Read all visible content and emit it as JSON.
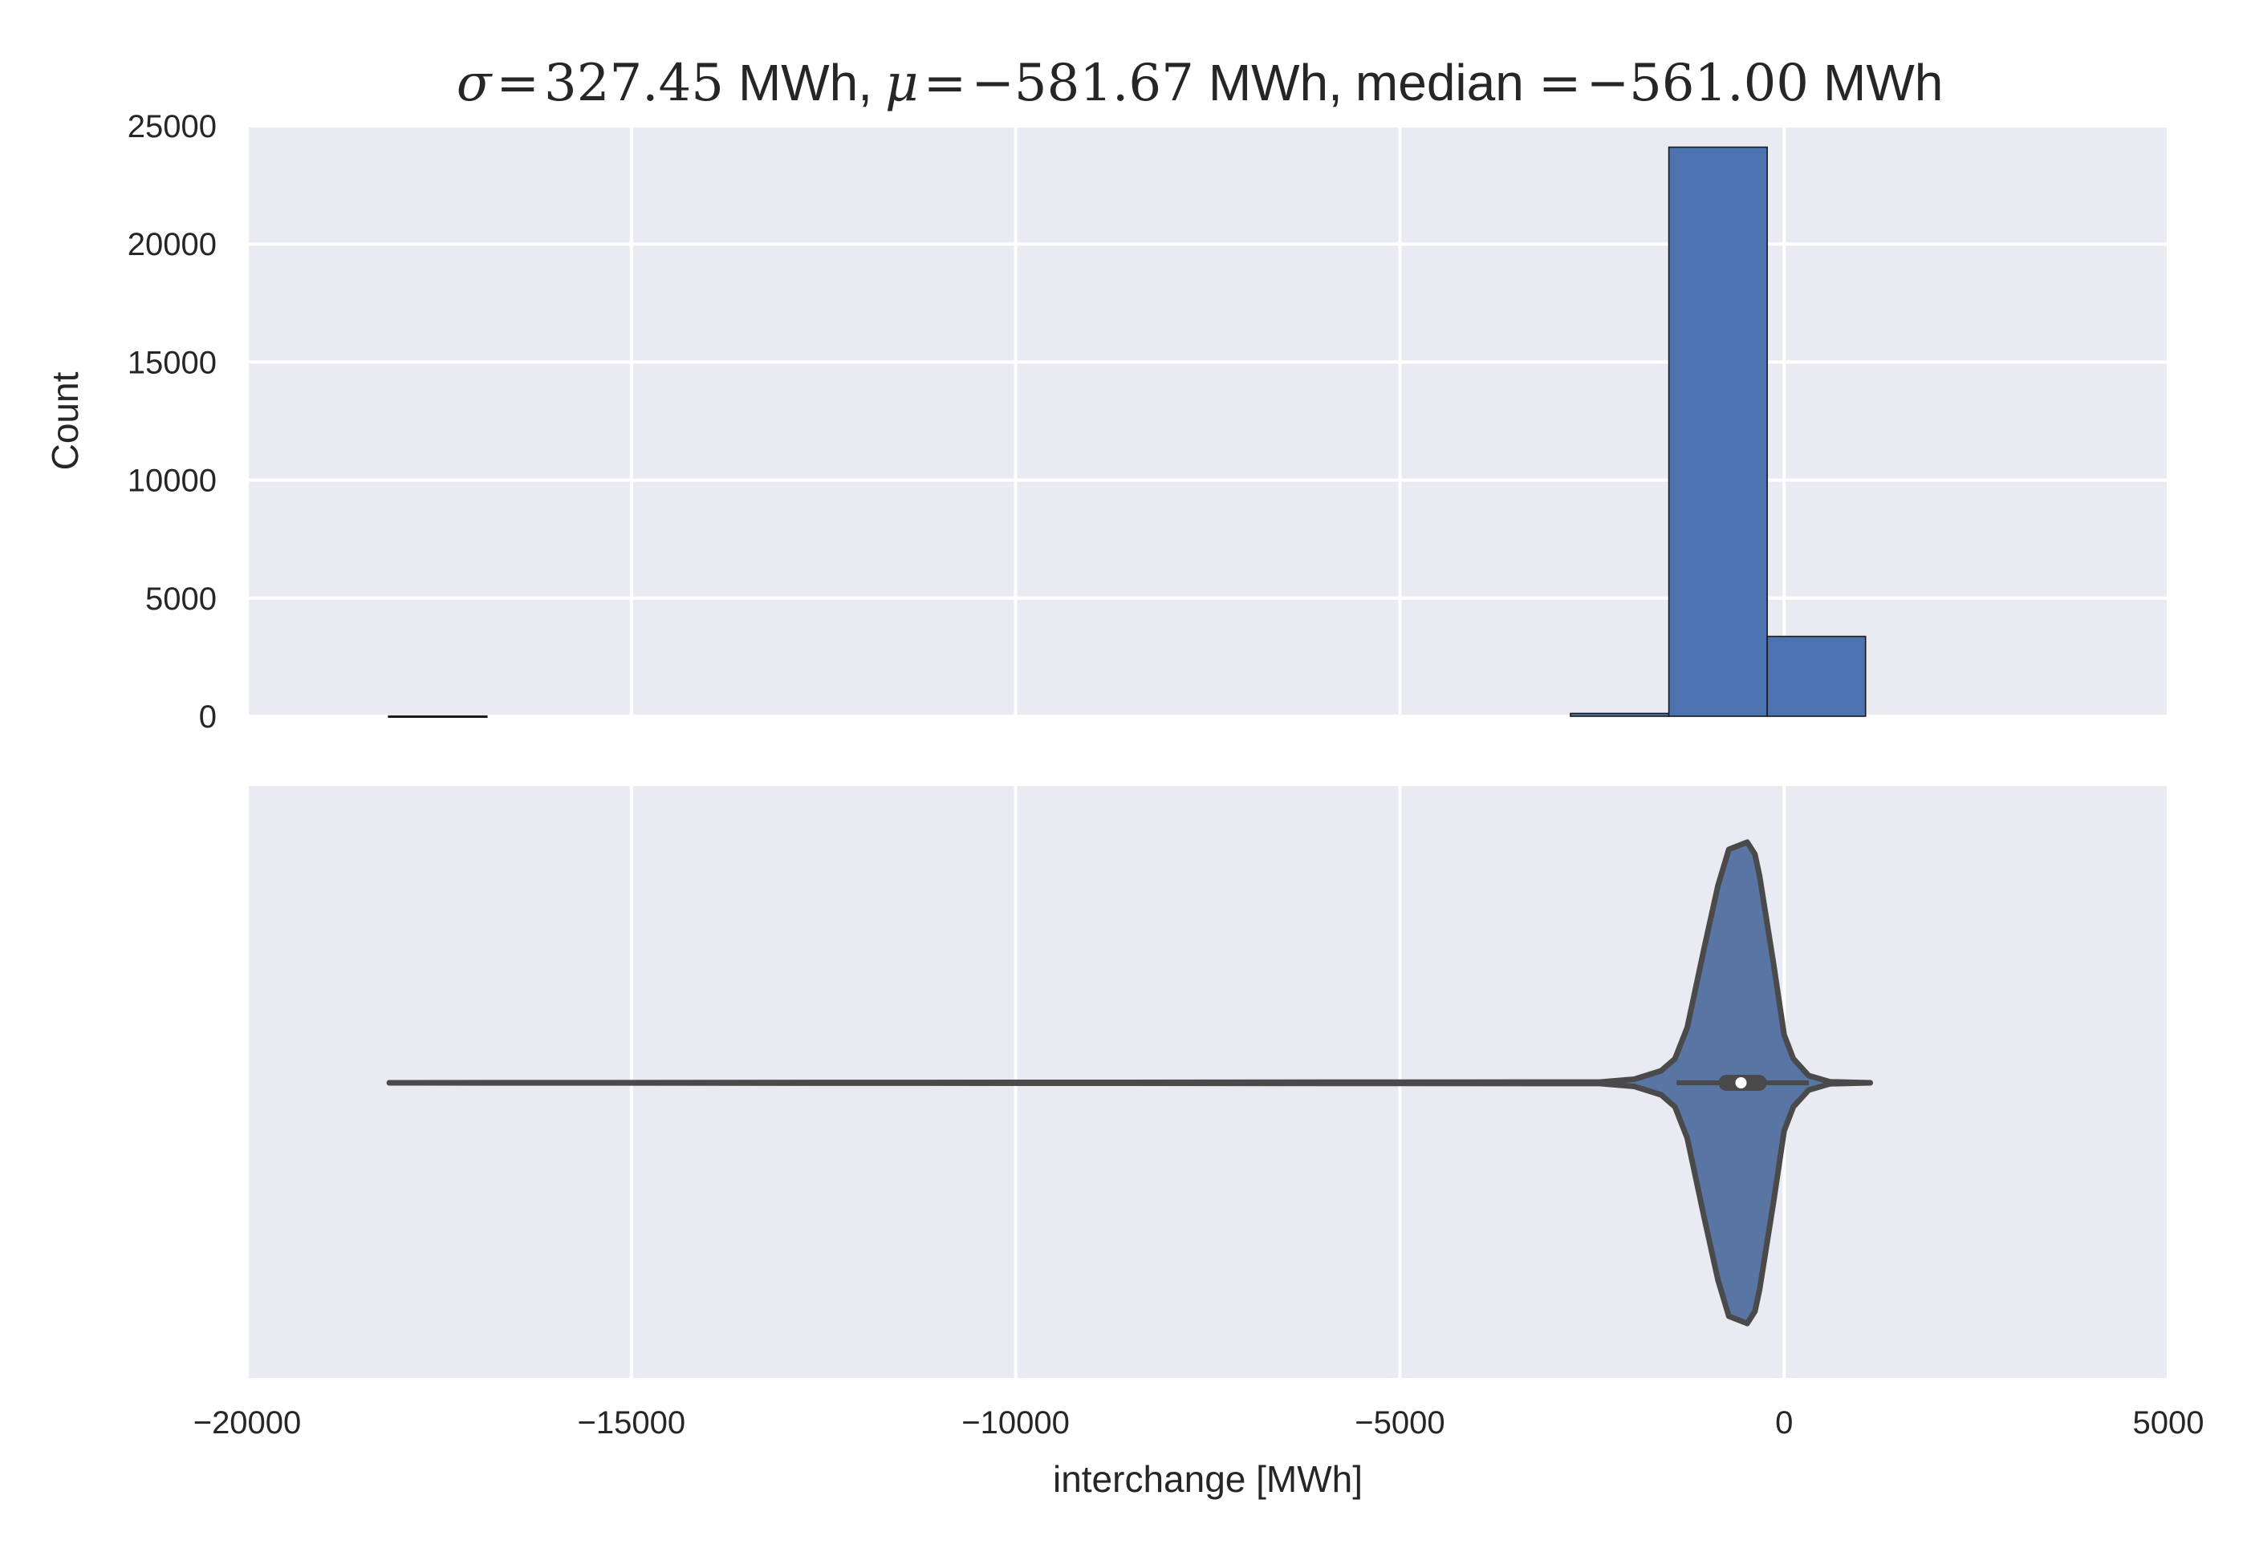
{
  "chart_data": [
    {
      "type": "bar",
      "subtype": "histogram",
      "title": {
        "sigma_symbol": "σ",
        "sigma_value": "327.45",
        "mu_symbol": "μ",
        "mu_value": "−581.67",
        "median_label": "median",
        "median_value": "−561.00",
        "unit": "MWh",
        "equals": "=",
        "separator": ","
      },
      "xlabel": "",
      "ylabel": "Count",
      "xlim": [
        -20000,
        5000
      ],
      "ylim": [
        0,
        25000
      ],
      "xticks": [
        -20000,
        -15000,
        -10000,
        -5000,
        0,
        5000
      ],
      "yticks": [
        0,
        5000,
        10000,
        15000,
        20000,
        25000
      ],
      "ytick_labels": [
        "0",
        "5000",
        "10000",
        "15000",
        "20000",
        "25000"
      ],
      "grid": true,
      "bar_color": "#4C72B0",
      "background_color": "#EAEAF2",
      "bins": [
        {
          "x0": -18160,
          "x1": -16880,
          "count": 10
        },
        {
          "x0": -2780,
          "x1": -1500,
          "count": 120
        },
        {
          "x0": -1500,
          "x1": -220,
          "count": 24100
        },
        {
          "x0": -220,
          "x1": 1060,
          "count": 3380
        }
      ]
    },
    {
      "type": "violin",
      "orientation": "horizontal",
      "xlabel": "interchange [MWh]",
      "xlim": [
        -20000,
        5000
      ],
      "xticks": [
        -20000,
        -15000,
        -10000,
        -5000,
        0,
        5000
      ],
      "xtick_labels": [
        "−20000",
        "−15000",
        "−10000",
        "−5000",
        "0",
        "5000"
      ],
      "grid": true,
      "fill_color": "#5975A4",
      "line_color": "#4A4A4A",
      "background_color": "#EAEAF2",
      "min": -18150,
      "max": 1120,
      "q1": -750,
      "q3": -330,
      "median": -561,
      "whisker_low": -1400,
      "whisker_high": 320,
      "density_profile": [
        {
          "x": -18150,
          "h": 0
        },
        {
          "x": -2400,
          "h": 0.003
        },
        {
          "x": -1950,
          "h": 0.015
        },
        {
          "x": -1600,
          "h": 0.05
        },
        {
          "x": -1420,
          "h": 0.1
        },
        {
          "x": -1260,
          "h": 0.23
        },
        {
          "x": -1040,
          "h": 0.56
        },
        {
          "x": -860,
          "h": 0.82
        },
        {
          "x": -720,
          "h": 0.97
        },
        {
          "x": -480,
          "h": 1.0
        },
        {
          "x": -380,
          "h": 0.95
        },
        {
          "x": -320,
          "h": 0.86
        },
        {
          "x": -140,
          "h": 0.5
        },
        {
          "x": 0,
          "h": 0.2
        },
        {
          "x": 120,
          "h": 0.1
        },
        {
          "x": 320,
          "h": 0.03
        },
        {
          "x": 600,
          "h": 0.004
        },
        {
          "x": 1120,
          "h": 0
        }
      ]
    }
  ]
}
